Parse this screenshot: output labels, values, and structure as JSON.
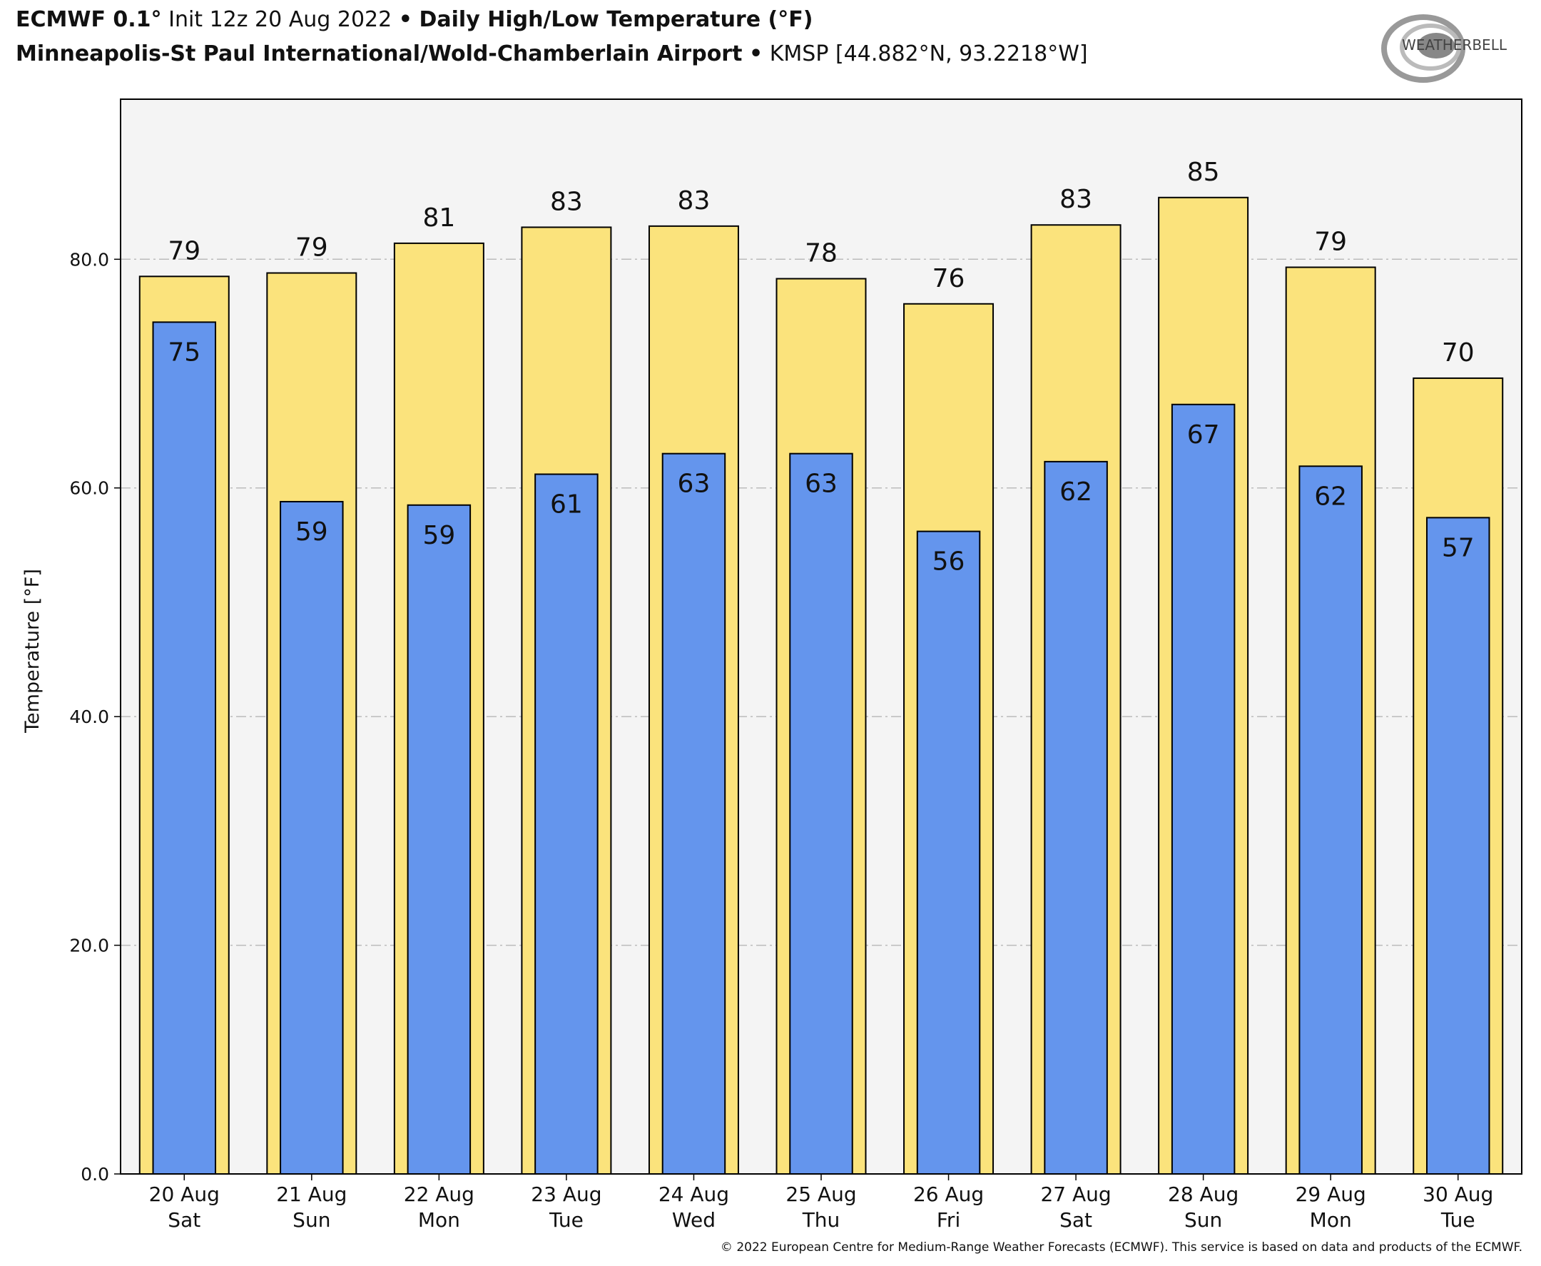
{
  "header": {
    "model": "ECMWF 0.1°",
    "init": "Init 12z 20 Aug 2022",
    "bullet": "•",
    "product": "Daily High/Low Temperature (°F)",
    "station_name": "Minneapolis-St Paul International/Wold-Chamberlain Airport",
    "station_id": "KMSP [44.882°N, 93.2218°W]"
  },
  "logo_text": "WEATHERBELL",
  "footer": "© 2022 European Centre for Medium-Range Weather Forecasts (ECMWF). This service is based on data and products of the ECMWF.",
  "chart_data": {
    "type": "bar",
    "ylabel": "Temperature [°F]",
    "ylim": [
      0,
      94
    ],
    "yticks": [
      "0.0",
      "20.0",
      "40.0",
      "60.0",
      "80.0"
    ],
    "grid": true,
    "categories": [
      [
        "20 Aug",
        "Sat"
      ],
      [
        "21 Aug",
        "Sun"
      ],
      [
        "22 Aug",
        "Mon"
      ],
      [
        "23 Aug",
        "Tue"
      ],
      [
        "24 Aug",
        "Wed"
      ],
      [
        "25 Aug",
        "Thu"
      ],
      [
        "26 Aug",
        "Fri"
      ],
      [
        "27 Aug",
        "Sat"
      ],
      [
        "28 Aug",
        "Sun"
      ],
      [
        "29 Aug",
        "Mon"
      ],
      [
        "30 Aug",
        "Tue"
      ]
    ],
    "series": [
      {
        "key": "high",
        "color": "#fbe37c",
        "values": [
          78.5,
          78.8,
          81.4,
          82.8,
          82.9,
          78.3,
          76.1,
          83.0,
          85.4,
          79.3,
          69.6
        ],
        "labels": [
          "79",
          "79",
          "81",
          "83",
          "83",
          "78",
          "76",
          "83",
          "85",
          "79",
          "70"
        ]
      },
      {
        "key": "low",
        "color": "#6495ed",
        "values": [
          74.5,
          58.8,
          58.5,
          61.2,
          63.0,
          63.0,
          56.2,
          62.3,
          67.3,
          61.9,
          57.4
        ],
        "labels": [
          "75",
          "59",
          "59",
          "61",
          "63",
          "63",
          "56",
          "62",
          "67",
          "62",
          "57"
        ]
      }
    ],
    "background": "#f4f4f4"
  }
}
